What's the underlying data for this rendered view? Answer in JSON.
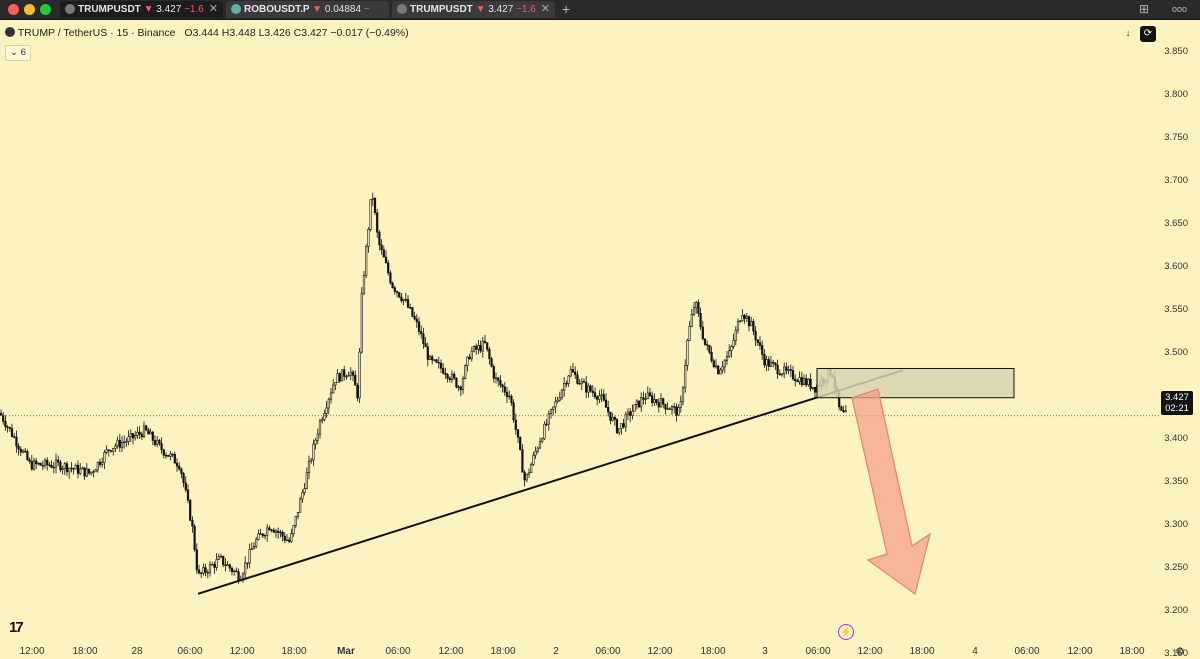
{
  "window": {
    "tabs": [
      {
        "symbol": "TRUMPUSDT",
        "arrow": "▼",
        "price": "3.427",
        "change": "−1.6"
      },
      {
        "symbol": "ROBOUSDT.P",
        "arrow": "▼",
        "price": "0.04884",
        "change": "−"
      },
      {
        "symbol": "TRUMPUSDT",
        "arrow": "▼",
        "price": "3.427",
        "change": "−1.6"
      }
    ],
    "new_tab": "+",
    "more": "ooo"
  },
  "header": {
    "symbol_line": "TRUMP / TetherUS · 15 · Binance",
    "open": "O3.444",
    "high": "H3.448",
    "low": "L3.426",
    "close": "C3.427",
    "change": "−0.017 (−0.49%)",
    "indicator_count": "6"
  },
  "price_axis": [
    "3.850",
    "3.800",
    "3.750",
    "3.700",
    "3.650",
    "3.600",
    "3.550",
    "3.500",
    "3.450",
    "3.400",
    "3.350",
    "3.300",
    "3.250",
    "3.200",
    "3.150"
  ],
  "time_axis": [
    "12:00",
    "18:00",
    "28",
    "06:00",
    "12:00",
    "18:00",
    "Mar",
    "06:00",
    "12:00",
    "18:00",
    "2",
    "06:00",
    "12:00",
    "18:00",
    "3",
    "06:00",
    "12:00",
    "18:00",
    "4",
    "06:00",
    "12:00",
    "18:00"
  ],
  "last_price": {
    "price": "3.427",
    "countdown": "02:21"
  },
  "colors": {
    "background": "#FCF3C0",
    "candles": "#111111",
    "zone_fill": "#D9D2B2",
    "arrow": "#F4A189",
    "down": "#F05B6A"
  },
  "chart_data": {
    "type": "candlestick",
    "series_shape": [
      [
        0,
        3.43
      ],
      [
        30,
        3.37
      ],
      [
        60,
        3.37
      ],
      [
        90,
        3.36
      ],
      [
        110,
        3.39
      ],
      [
        130,
        3.4
      ],
      [
        145,
        3.41
      ],
      [
        160,
        3.39
      ],
      [
        180,
        3.37
      ],
      [
        192,
        3.3
      ],
      [
        198,
        3.24
      ],
      [
        220,
        3.26
      ],
      [
        240,
        3.24
      ],
      [
        255,
        3.28
      ],
      [
        270,
        3.3
      ],
      [
        290,
        3.28
      ],
      [
        305,
        3.35
      ],
      [
        320,
        3.42
      ],
      [
        335,
        3.47
      ],
      [
        350,
        3.48
      ],
      [
        358,
        3.45
      ],
      [
        362,
        3.57
      ],
      [
        372,
        3.69
      ],
      [
        378,
        3.63
      ],
      [
        392,
        3.58
      ],
      [
        405,
        3.56
      ],
      [
        418,
        3.53
      ],
      [
        430,
        3.49
      ],
      [
        445,
        3.48
      ],
      [
        460,
        3.46
      ],
      [
        470,
        3.5
      ],
      [
        485,
        3.51
      ],
      [
        495,
        3.47
      ],
      [
        510,
        3.45
      ],
      [
        525,
        3.35
      ],
      [
        540,
        3.4
      ],
      [
        555,
        3.44
      ],
      [
        570,
        3.48
      ],
      [
        585,
        3.46
      ],
      [
        600,
        3.45
      ],
      [
        618,
        3.41
      ],
      [
        630,
        3.43
      ],
      [
        645,
        3.45
      ],
      [
        665,
        3.44
      ],
      [
        680,
        3.43
      ],
      [
        688,
        3.52
      ],
      [
        695,
        3.56
      ],
      [
        705,
        3.51
      ],
      [
        718,
        3.48
      ],
      [
        730,
        3.5
      ],
      [
        742,
        3.55
      ],
      [
        752,
        3.53
      ],
      [
        765,
        3.49
      ],
      [
        780,
        3.48
      ],
      [
        800,
        3.47
      ],
      [
        815,
        3.46
      ],
      [
        832,
        3.48
      ],
      [
        840,
        3.43
      ],
      [
        846,
        3.427
      ]
    ],
    "trendline": {
      "from": {
        "time": "28 ~06:00",
        "price": 3.22
      },
      "to": {
        "time": "3 ~12:00",
        "price": 3.48
      }
    },
    "zone": {
      "top": 3.482,
      "bottom": 3.448
    },
    "last": 3.427,
    "ylim": [
      3.15,
      3.85
    ]
  }
}
